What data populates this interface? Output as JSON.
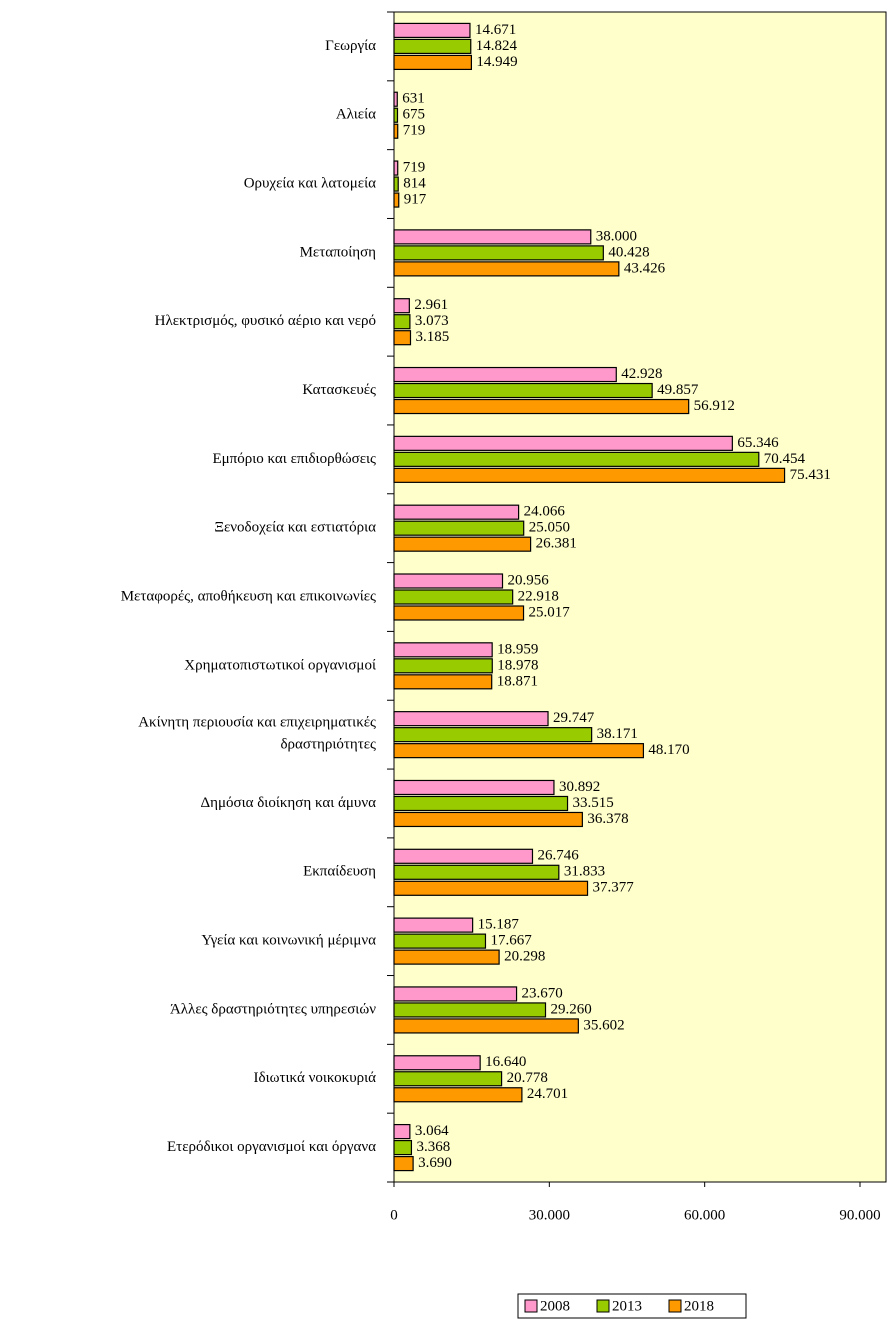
{
  "chart_data": {
    "type": "barh",
    "categories": [
      "Γεωργία",
      "Αλιεία",
      "Ορυχεία και λατομεία",
      "Μεταποίηση",
      "Ηλεκτρισμός, φυσικό αέριο και νερό",
      "Κατασκευές",
      "Εμπόριο και επιδιορθώσεις",
      "Ξενοδοχεία και εστιατόρια",
      "Μεταφορές, αποθήκευση και επικοινωνίες",
      "Χρηματοπιστωτικοί οργανισμοί",
      "Ακίνητη περιουσία και  επιχειρηματικές\nδραστηριότητες",
      "Δημόσια διοίκηση και άμυνα",
      "Εκπαίδευση",
      "Υγεία και κοινωνική μέριμνα",
      "Άλλες δραστηριότητες υπηρεσιών",
      "Ιδιωτικά νοικοκυριά",
      "Ετερόδικοι οργανισμοί και όργανα"
    ],
    "series": [
      {
        "name": "2008",
        "color": "#ff99cc",
        "values": [
          14671,
          631,
          719,
          38000,
          2961,
          42928,
          65346,
          24066,
          20956,
          18959,
          29747,
          30892,
          26746,
          15187,
          23670,
          16640,
          3064
        ],
        "value_labels": [
          "14.671",
          "631",
          "719",
          "38.000",
          "2.961",
          "42.928",
          "65.346",
          "24.066",
          "20.956",
          "18.959",
          "29.747",
          "30.892",
          "26.746",
          "15.187",
          "23.670",
          "16.640",
          "3.064"
        ]
      },
      {
        "name": "2013",
        "color": "#99cc00",
        "values": [
          14824,
          675,
          814,
          40428,
          3073,
          49857,
          70454,
          25050,
          22918,
          18978,
          38171,
          33515,
          31833,
          17667,
          29260,
          20778,
          3368
        ],
        "value_labels": [
          "14.824",
          "675",
          "814",
          "40.428",
          "3.073",
          "49.857",
          "70.454",
          "25.050",
          "22.918",
          "18.978",
          "38.171",
          "33.515",
          "31.833",
          "17.667",
          "29.260",
          "20.778",
          "3.368"
        ]
      },
      {
        "name": "2018",
        "color": "#ff9900",
        "values": [
          14949,
          719,
          917,
          43426,
          3185,
          56912,
          75431,
          26381,
          25017,
          18871,
          48170,
          36378,
          37377,
          20298,
          35602,
          24701,
          3690
        ],
        "value_labels": [
          "14.949",
          "719",
          "917",
          "43.426",
          "3.185",
          "56.912",
          "75.431",
          "26.381",
          "25.017",
          "18.871",
          "48.170",
          "36.378",
          "37.377",
          "20.298",
          "35.602",
          "24.701",
          "3.690"
        ]
      }
    ],
    "xlim": [
      0,
      90000
    ],
    "xticks": [
      0,
      {
        "value": 30000,
        "label": "30.000"
      },
      {
        "value": 60000,
        "label": "60.000"
      },
      {
        "value": 90000,
        "label": "90.000"
      }
    ],
    "legend": "bottom"
  }
}
